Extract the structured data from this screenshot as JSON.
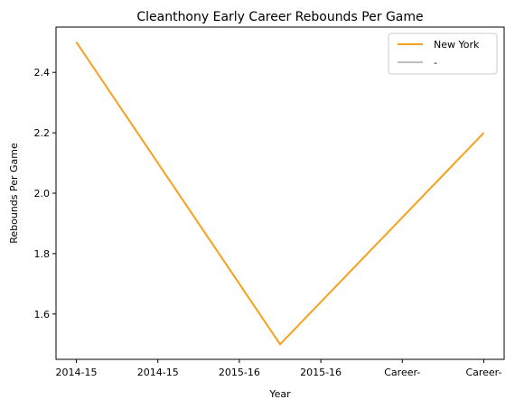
{
  "chart_data": {
    "type": "line",
    "title": "Cleanthony Early Career Rebounds Per Game",
    "xlabel": "Year",
    "ylabel": "Rebounds Per Game",
    "categories": [
      "2014-15",
      "2014-15",
      "2015-16",
      "2015-16",
      "Career-",
      "Career-"
    ],
    "ylim": [
      1.45,
      2.55
    ],
    "yticks": [
      1.6,
      1.8,
      2.0,
      2.2,
      2.4
    ],
    "ytick_labels": [
      "1.6",
      "1.8",
      "2.0",
      "2.2",
      "2.4"
    ],
    "series": [
      {
        "name": "New York",
        "color": "#f5a11d",
        "points": [
          {
            "x": 0,
            "y": 2.5
          },
          {
            "x": 2.5,
            "y": 1.5
          },
          {
            "x": 5,
            "y": 2.2
          }
        ]
      },
      {
        "name": "-",
        "color": "#bfbfbf",
        "points": []
      }
    ],
    "legend_position": "top-right",
    "grid": false
  }
}
